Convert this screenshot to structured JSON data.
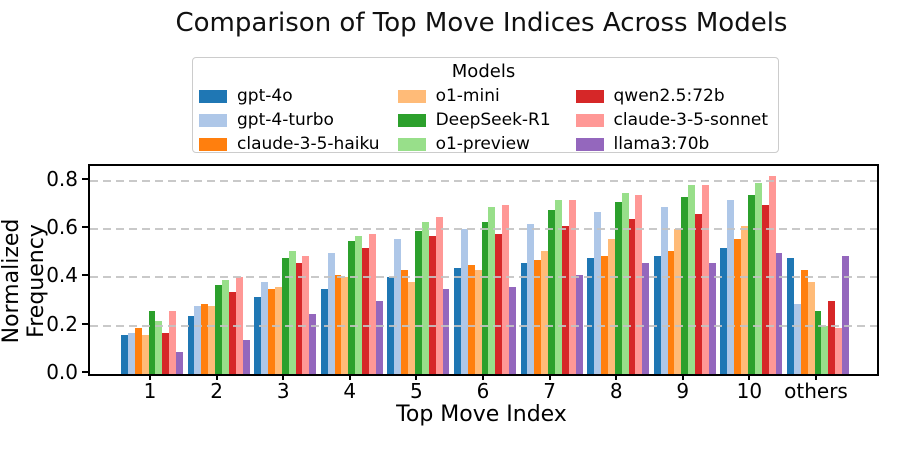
{
  "title": "Comparison of Top Move Indices Across Models",
  "legend": {
    "title": "Models",
    "items": [
      {
        "label": "gpt-4o",
        "color": "#1f77b4"
      },
      {
        "label": "gpt-4-turbo",
        "color": "#aec7e8"
      },
      {
        "label": "claude-3-5-haiku",
        "color": "#ff7f0e"
      },
      {
        "label": "o1-mini",
        "color": "#ffbb78"
      },
      {
        "label": "DeepSeek-R1",
        "color": "#2ca02c"
      },
      {
        "label": "o1-preview",
        "color": "#98df8a"
      },
      {
        "label": "qwen2.5:72b",
        "color": "#d62728"
      },
      {
        "label": "claude-3-5-sonnet",
        "color": "#ff9896"
      },
      {
        "label": "llama3:70b",
        "color": "#9467bd"
      }
    ]
  },
  "chart_data": {
    "type": "bar",
    "title": "Comparison of Top Move Indices Across Models",
    "xlabel": "Top Move Index",
    "ylabel": "Normalized Frequency",
    "categories": [
      "1",
      "2",
      "3",
      "4",
      "5",
      "6",
      "7",
      "8",
      "9",
      "10",
      "others"
    ],
    "yticks": [
      {
        "label": "0.0",
        "value": 0.0
      },
      {
        "label": "0.2",
        "value": 0.2
      },
      {
        "label": "0.4",
        "value": 0.4
      },
      {
        "label": "0.6",
        "value": 0.6
      },
      {
        "label": "0.8",
        "value": 0.8
      }
    ],
    "ylim": [
      0,
      0.86
    ],
    "grid": "horizontal-dashed",
    "grid_color": "#c3c3c3",
    "legend_position": "top-center",
    "legend_title": "Models",
    "series": [
      {
        "name": "gpt-4o",
        "color": "#1f77b4",
        "values": [
          0.16,
          0.24,
          0.32,
          0.35,
          0.4,
          0.44,
          0.46,
          0.48,
          0.49,
          0.52,
          0.48
        ]
      },
      {
        "name": "gpt-4-turbo",
        "color": "#aec7e8",
        "values": [
          0.17,
          0.28,
          0.38,
          0.5,
          0.56,
          0.6,
          0.62,
          0.67,
          0.69,
          0.72,
          0.29
        ]
      },
      {
        "name": "claude-3-5-haiku",
        "color": "#ff7f0e",
        "values": [
          0.19,
          0.29,
          0.35,
          0.41,
          0.43,
          0.45,
          0.47,
          0.49,
          0.51,
          0.56,
          0.43
        ]
      },
      {
        "name": "o1-mini",
        "color": "#ffbb78",
        "values": [
          0.16,
          0.28,
          0.36,
          0.4,
          0.38,
          0.43,
          0.51,
          0.56,
          0.6,
          0.61,
          0.38
        ]
      },
      {
        "name": "DeepSeek-R1",
        "color": "#2ca02c",
        "values": [
          0.26,
          0.37,
          0.48,
          0.55,
          0.59,
          0.63,
          0.68,
          0.71,
          0.73,
          0.74,
          0.26
        ]
      },
      {
        "name": "o1-preview",
        "color": "#98df8a",
        "values": [
          0.22,
          0.39,
          0.51,
          0.57,
          0.63,
          0.69,
          0.72,
          0.75,
          0.78,
          0.79,
          0.2
        ]
      },
      {
        "name": "qwen2.5:72b",
        "color": "#d62728",
        "values": [
          0.17,
          0.34,
          0.46,
          0.52,
          0.57,
          0.58,
          0.61,
          0.64,
          0.66,
          0.7,
          0.3
        ]
      },
      {
        "name": "claude-3-5-sonnet",
        "color": "#ff9896",
        "values": [
          0.26,
          0.4,
          0.49,
          0.58,
          0.65,
          0.7,
          0.72,
          0.74,
          0.78,
          0.82,
          0.19
        ]
      },
      {
        "name": "llama3:70b",
        "color": "#9467bd",
        "values": [
          0.09,
          0.14,
          0.25,
          0.3,
          0.35,
          0.36,
          0.41,
          0.46,
          0.46,
          0.5,
          0.49
        ]
      }
    ]
  }
}
